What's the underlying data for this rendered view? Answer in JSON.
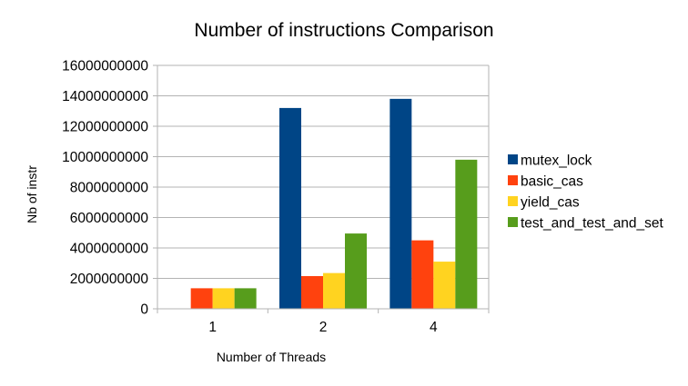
{
  "chart_data": {
    "type": "bar",
    "title": "Number of instructions Comparison",
    "xlabel": "Number of Threads",
    "ylabel": "Nb of instr",
    "ylim": [
      0,
      16000000000
    ],
    "yticks": [
      0,
      2000000000,
      4000000000,
      6000000000,
      8000000000,
      10000000000,
      12000000000,
      14000000000,
      16000000000
    ],
    "ytick_labels": [
      "0",
      "2000000000",
      "4000000000",
      "6000000000",
      "8000000000",
      "10000000000",
      "12000000000",
      "14000000000",
      "16000000000"
    ],
    "grid": "horizontal",
    "legend_position": "right",
    "categories": [
      "1",
      "2",
      "4"
    ],
    "series": [
      {
        "name": "mutex_lock",
        "color": "#004586",
        "values": [
          0,
          13200000000,
          13800000000
        ]
      },
      {
        "name": "basic_cas",
        "color": "#ff420e",
        "values": [
          1350000000,
          2150000000,
          4500000000
        ]
      },
      {
        "name": "yield_cas",
        "color": "#ffd320",
        "values": [
          1350000000,
          2350000000,
          3100000000
        ]
      },
      {
        "name": "test_and_test_and_set",
        "color": "#579d1c",
        "values": [
          1350000000,
          4950000000,
          9800000000
        ]
      }
    ]
  }
}
